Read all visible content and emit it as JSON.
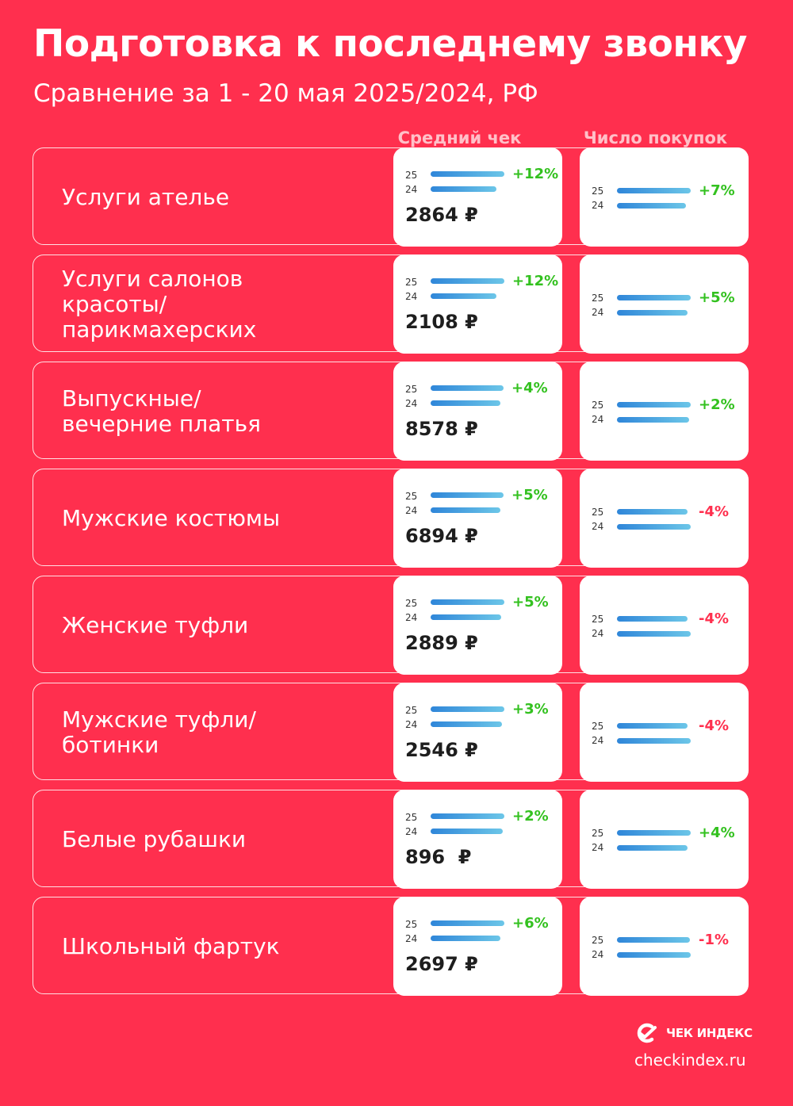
{
  "header": {
    "title": "Подготовка к последнему звонку",
    "subtitle": "Сравнение за 1 - 20 мая 2025/2024, РФ"
  },
  "colors": {
    "background": "#ff2f4e",
    "positive": "#33c11f",
    "negative": "#ff2f4e",
    "bar_start": "#2f86d9",
    "bar_end": "#6cc6e8"
  },
  "chart_data": {
    "type": "bar",
    "columns": [
      "Средний чек",
      "Число покупок"
    ],
    "year_labels": [
      "25",
      "24"
    ],
    "currency": "₽",
    "categories": [
      "Услуги ателье",
      "Услуги салонов красоты/ парикмахерских",
      "Выпускные/ вечерние платья",
      "Мужские костюмы",
      "Женские туфли",
      "Мужские туфли/ ботинки",
      "Белые рубашки",
      "Школьный фартук"
    ],
    "series": [
      {
        "name": "Средний чек",
        "values_2025": [
          2864,
          2108,
          8578,
          6894,
          2889,
          2546,
          896,
          2697
        ],
        "change": [
          "+12%",
          "+12%",
          "+4%",
          "+5%",
          "+5%",
          "+3%",
          "+2%",
          "+6%"
        ]
      },
      {
        "name": "Число покупок",
        "change": [
          "+7%",
          "+5%",
          "+2%",
          "-4%",
          "-4%",
          "-4%",
          "+4%",
          "-1%"
        ]
      }
    ]
  },
  "rows": [
    {
      "label": "Услуги ателье",
      "avg_value": "2864 ₽",
      "avg_pct": "+12%",
      "cnt_pct": "+7%"
    },
    {
      "label": "Услуги салонов\nкрасоты/\nпарикмахерских",
      "avg_value": "2108 ₽",
      "avg_pct": "+12%",
      "cnt_pct": "+5%"
    },
    {
      "label": "Выпускные/\nвечерние платья",
      "avg_value": "8578 ₽",
      "avg_pct": "+4%",
      "cnt_pct": "+2%"
    },
    {
      "label": "Мужские костюмы",
      "avg_value": "6894 ₽",
      "avg_pct": "+5%",
      "cnt_pct": "-4%"
    },
    {
      "label": "Женские туфли",
      "avg_value": "2889 ₽",
      "avg_pct": "+5%",
      "cnt_pct": "-4%"
    },
    {
      "label": "Мужские туфли/\nботинки",
      "avg_value": "2546 ₽",
      "avg_pct": "+3%",
      "cnt_pct": "-4%"
    },
    {
      "label": "Белые рубашки",
      "avg_value": "896  ₽",
      "avg_pct": "+2%",
      "cnt_pct": "+4%"
    },
    {
      "label": "Школьный фартук",
      "avg_value": "2697 ₽",
      "avg_pct": "+6%",
      "cnt_pct": "-1%"
    }
  ],
  "brand": {
    "name": "ЧЕК ИНДЕКС",
    "site": "checkindex.ru",
    "icon": "checkindex-logo-icon"
  }
}
